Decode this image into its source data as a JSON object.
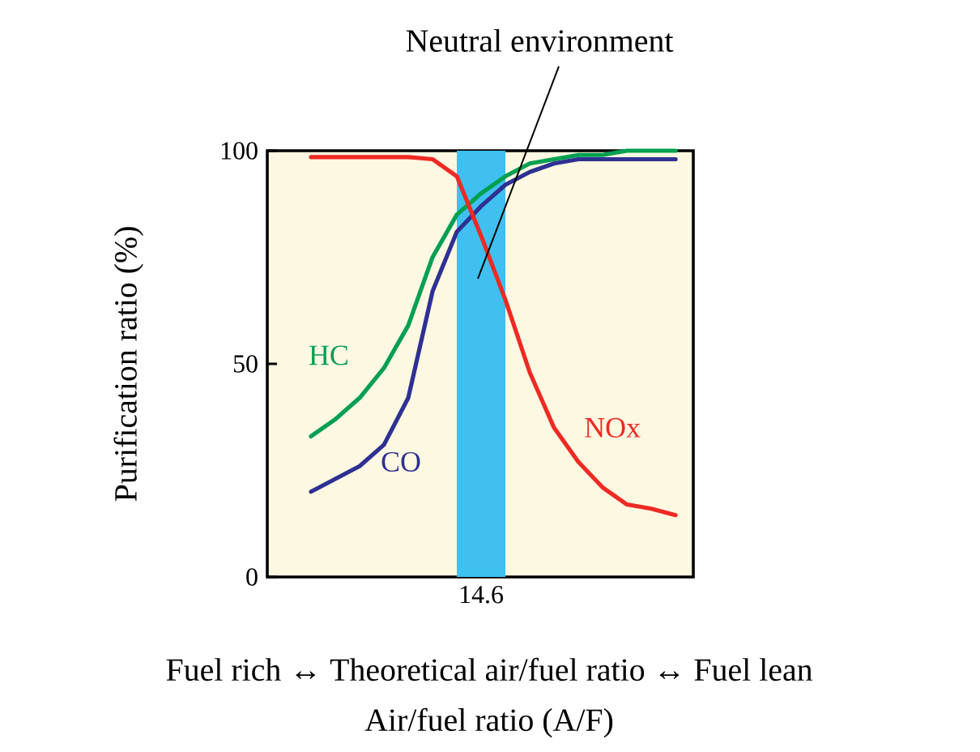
{
  "chart_data": {
    "type": "line",
    "xlabel": "Air/fuel ratio (A/F)",
    "ylabel": "Purification ratio (%)",
    "annotations": [
      "Neutral environment",
      "Fuel rich ↔ Theoretical air/fuel ratio ↔ Fuel lean"
    ],
    "categories": [
      null,
      null,
      null,
      null,
      null,
      null,
      null,
      "14.6",
      null,
      null,
      null,
      null,
      null,
      null,
      null,
      null
    ],
    "series": [
      {
        "name": "HC",
        "color": "#00a050",
        "values": [
          33,
          37,
          42,
          49,
          59,
          75,
          85,
          90,
          94,
          97,
          98,
          99,
          99,
          100,
          100,
          100
        ]
      },
      {
        "name": "CO",
        "color": "#2e3192",
        "values": [
          20,
          23,
          26,
          31,
          42,
          67,
          81,
          87,
          92,
          95,
          97,
          98,
          98,
          98,
          98,
          98
        ]
      },
      {
        "name": "NOx",
        "color": "#ee2a24",
        "values": [
          98.5,
          98.5,
          98.5,
          98.5,
          98.5,
          98,
          94,
          80,
          65,
          48,
          35,
          27,
          21,
          17,
          16,
          14.5
        ]
      }
    ],
    "ylim": [
      0,
      100
    ],
    "yticks": [
      0,
      50,
      100
    ],
    "marker": "none",
    "line_style": "solid",
    "grid": false
  }
}
